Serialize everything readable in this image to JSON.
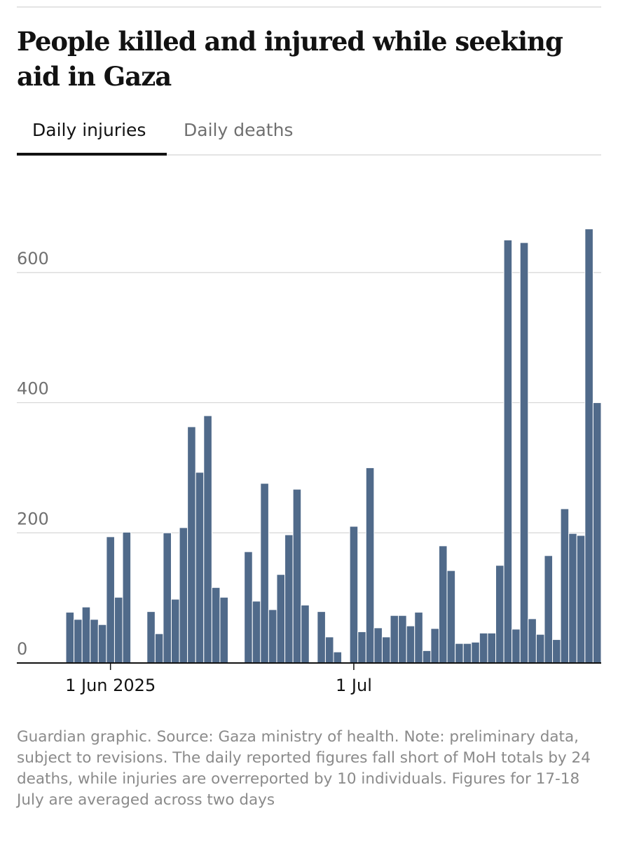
{
  "tabs": [
    "Daily injuries",
    "Daily deaths"
  ],
  "chart_data": {
    "type": "bar",
    "title": "People killed and injured while seeking aid in Gaza",
    "note": "Guardian graphic. Source: Gaza ministry of health. Note: preliminary data, subject to revisions. The daily reported figures fall short of MoH totals by 24 deaths, while injuries are overreported by 10 individuals. Figures for 17-18 July are averaged across two days",
    "color": "#506a8a",
    "grid": true,
    "x": [
      "2025-05-27",
      "2025-05-28",
      "2025-05-29",
      "2025-05-30",
      "2025-05-31",
      "2025-06-01",
      "2025-06-02",
      "2025-06-03",
      "2025-06-04",
      "2025-06-05",
      "2025-06-06",
      "2025-06-07",
      "2025-06-08",
      "2025-06-09",
      "2025-06-10",
      "2025-06-11",
      "2025-06-12",
      "2025-06-13",
      "2025-06-14",
      "2025-06-15",
      "2025-06-16",
      "2025-06-17",
      "2025-06-18",
      "2025-06-19",
      "2025-06-20",
      "2025-06-21",
      "2025-06-22",
      "2025-06-23",
      "2025-06-24",
      "2025-06-25",
      "2025-06-26",
      "2025-06-27",
      "2025-06-28",
      "2025-06-29",
      "2025-06-30",
      "2025-07-01",
      "2025-07-02",
      "2025-07-03",
      "2025-07-04",
      "2025-07-05",
      "2025-07-06",
      "2025-07-07",
      "2025-07-08",
      "2025-07-09",
      "2025-07-10",
      "2025-07-11",
      "2025-07-12",
      "2025-07-13",
      "2025-07-14",
      "2025-07-15",
      "2025-07-16",
      "2025-07-17",
      "2025-07-18",
      "2025-07-19",
      "2025-07-20",
      "2025-07-21",
      "2025-07-22",
      "2025-07-23",
      "2025-07-24",
      "2025-07-25",
      "2025-07-26",
      "2025-07-27",
      "2025-07-28",
      "2025-07-29",
      "2025-07-30",
      "2025-07-31"
    ],
    "values": [
      78,
      67,
      86,
      67,
      59,
      194,
      101,
      201,
      null,
      null,
      79,
      45,
      200,
      98,
      208,
      363,
      293,
      380,
      116,
      101,
      null,
      null,
      171,
      95,
      276,
      82,
      136,
      197,
      267,
      89,
      null,
      79,
      40,
      17,
      null,
      210,
      48,
      300,
      54,
      40,
      73,
      73,
      57,
      78,
      19,
      53,
      180,
      142,
      30,
      30,
      32,
      46,
      46,
      150,
      650,
      52,
      646,
      68,
      44,
      165,
      36,
      237,
      199,
      196,
      667,
      400
    ],
    "xticks": [
      {
        "value": "2025-06-01",
        "label": "1 Jun 2025"
      },
      {
        "value": "2025-07-01",
        "label": "1 Jul"
      }
    ],
    "ylim": [
      0,
      700
    ],
    "yticks": [
      0,
      200,
      400,
      600
    ]
  }
}
